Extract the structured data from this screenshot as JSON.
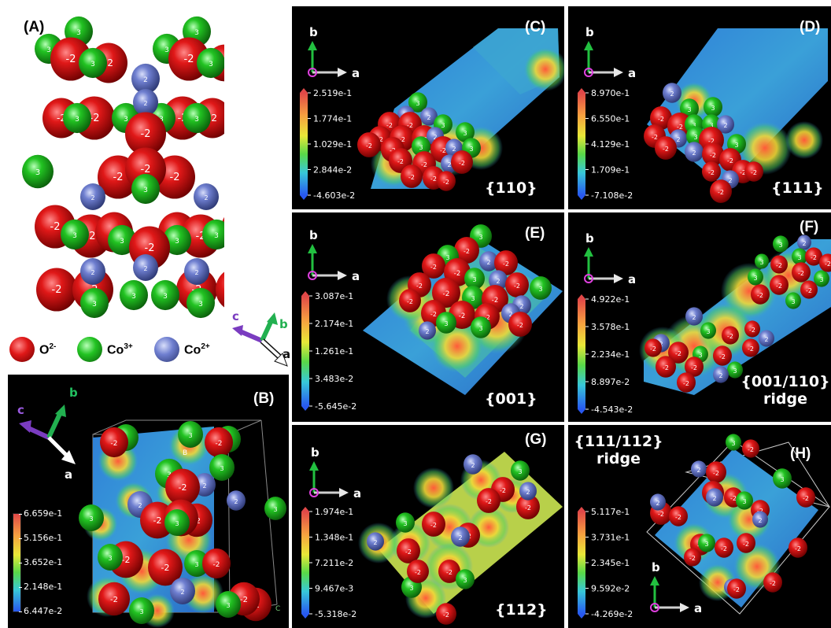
{
  "panels": {
    "A": {
      "label": "(A)"
    },
    "B": {
      "label": "(B)",
      "colorbar": [
        "6.659e-1",
        "5.156e-1",
        "3.652e-1",
        "2.148e-1",
        "6.447e-2"
      ]
    },
    "C": {
      "label": "(C)",
      "facet": "{110}",
      "colorbar": [
        "2.519e-1",
        "1.774e-1",
        "1.029e-1",
        "2.844e-2",
        "-4.603e-2"
      ]
    },
    "D": {
      "label": "(D)",
      "facet": "{111}",
      "colorbar": [
        "8.970e-1",
        "6.550e-1",
        "4.129e-1",
        "1.709e-1",
        "-7.108e-2"
      ]
    },
    "E": {
      "label": "(E)",
      "facet": "{001}",
      "colorbar": [
        "3.087e-1",
        "2.174e-1",
        "1.261e-1",
        "3.483e-2",
        "-5.645e-2"
      ]
    },
    "F": {
      "label": "(F)",
      "facet_line1": "{001/110}",
      "facet_line2": "ridge",
      "colorbar": [
        "4.922e-1",
        "3.578e-1",
        "2.234e-1",
        "8.897e-2",
        "-4.543e-2"
      ]
    },
    "G": {
      "label": "(G)",
      "facet": "{112}",
      "colorbar": [
        "1.974e-1",
        "1.348e-1",
        "7.211e-2",
        "9.467e-3",
        "-5.318e-2"
      ]
    },
    "H": {
      "label": "(H)",
      "facet_line1": "{111/112}",
      "facet_line2": "ridge",
      "colorbar": [
        "5.117e-1",
        "3.731e-1",
        "2.345e-1",
        "9.592e-2",
        "-4.269e-2"
      ]
    }
  },
  "axes": {
    "a": "a",
    "b": "b",
    "c": "c"
  },
  "ion_labels": {
    "o": "-2",
    "co3": "3",
    "co2": "2"
  },
  "legend": {
    "o_base": "O",
    "o_sup": "2-",
    "co3_base": "Co",
    "co3_sup": "3+",
    "co2_base": "Co",
    "co2_sup": "2+"
  },
  "colors": {
    "oxygen": "#d81818",
    "cobalt3": "#22c322",
    "cobalt2": "#6f7fd0",
    "axis_a": "#ffffff",
    "axis_b": "#22b050",
    "axis_c": "#7a3cc0"
  }
}
